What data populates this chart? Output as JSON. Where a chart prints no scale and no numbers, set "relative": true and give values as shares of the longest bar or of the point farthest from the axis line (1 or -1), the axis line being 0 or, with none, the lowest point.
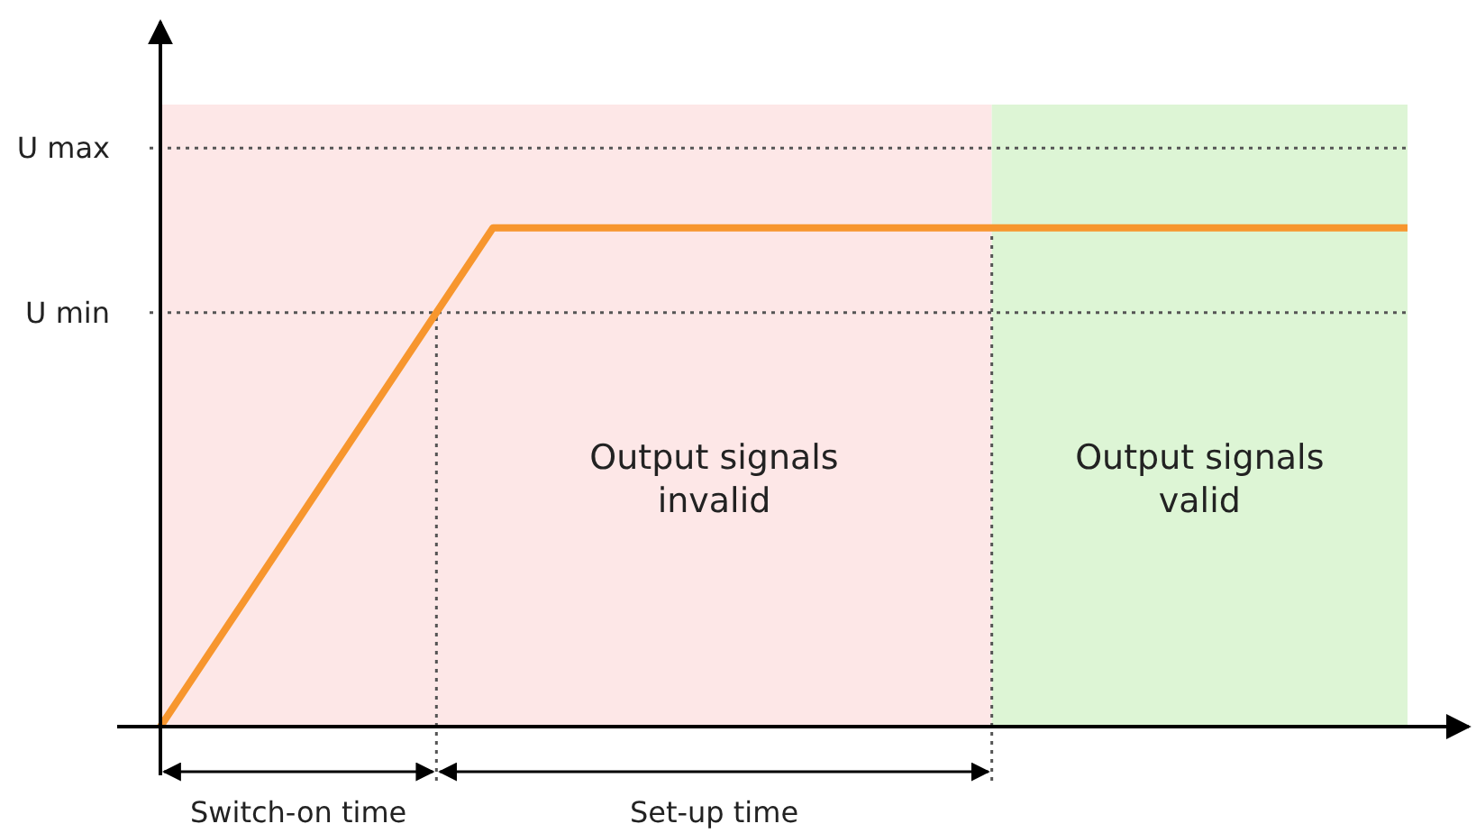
{
  "chart_data": {
    "type": "line",
    "relative": true,
    "categories": [
      null,
      null,
      null,
      null,
      null,
      null,
      null,
      null,
      null,
      null,
      null,
      null,
      null,
      null,
      null,
      null
    ],
    "series": [
      {
        "color": "#f7962e",
        "values": [
          0,
          0.25,
          0.5,
          0.75,
          1,
          1,
          1,
          1,
          1,
          1,
          1,
          1,
          1,
          1,
          1,
          1
        ]
      }
    ],
    "ref_lines": [
      {
        "axis": "y",
        "value": 1.16,
        "label": "U max",
        "line_style": "dotted",
        "color": "#555555"
      },
      {
        "axis": "y",
        "value": 0.83,
        "label": "U min",
        "line_style": "dotted",
        "color": "#555555"
      }
    ],
    "annotations": [
      "Output signals invalid",
      "Output signals valid",
      "Switch-on time",
      "Set-up time"
    ],
    "marker": "none",
    "line_style": "solid"
  }
}
